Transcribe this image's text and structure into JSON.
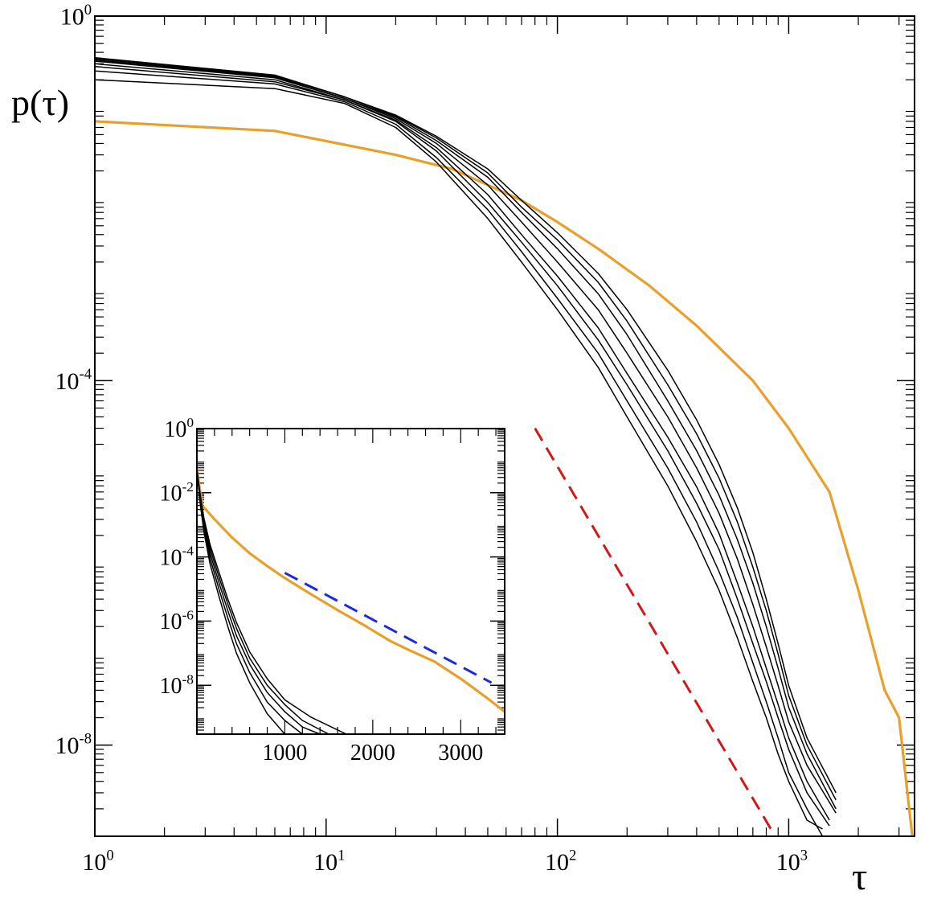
{
  "chart_data": [
    {
      "id": "main",
      "type": "line",
      "title": "",
      "xlabel": "τ",
      "ylabel": "p(τ)",
      "xscale": "log",
      "yscale": "log",
      "xlim": [
        1,
        3500
      ],
      "ylim": [
        1e-09,
        1
      ],
      "legend": "none",
      "colors": {
        "orange": "#E8A02A",
        "black": "#000000",
        "red_dashed": "#D01818"
      },
      "x_ticks": [
        {
          "base": "10",
          "exp": "0",
          "value": 1
        },
        {
          "base": "10",
          "exp": "1",
          "value": 10
        },
        {
          "base": "10",
          "exp": "2",
          "value": 100
        },
        {
          "base": "10",
          "exp": "3",
          "value": 1000
        }
      ],
      "y_ticks": [
        {
          "base": "10",
          "exp": "0",
          "value": 1
        },
        {
          "base": "10",
          "exp": "-4",
          "value": 0.0001
        },
        {
          "base": "10",
          "exp": "-8",
          "value": 1e-08
        }
      ],
      "series": [
        {
          "name": "orange",
          "color": "#E8A02A",
          "style": "solid",
          "x": [
            1,
            6,
            20,
            35,
            50,
            70,
            100,
            150,
            250,
            400,
            700,
            1000,
            1500,
            2000,
            2600,
            3000,
            3500
          ],
          "y": [
            0.07,
            0.055,
            0.03,
            0.021,
            0.014,
            0.0095,
            0.0055,
            0.0028,
            0.0011,
            0.0004,
            0.0001,
            3e-05,
            6e-06,
            5e-07,
            4e-08,
            2e-08,
            6e-10
          ]
        },
        {
          "name": "black-1",
          "color": "#000000",
          "style": "solid",
          "x": [
            1,
            6,
            12,
            20,
            30,
            50,
            70,
            100,
            150,
            200,
            300,
            400,
            500,
            600,
            700,
            800,
            900,
            1000,
            1200,
            1400
          ],
          "y": [
            0.2,
            0.16,
            0.11,
            0.06,
            0.025,
            0.006,
            0.002,
            0.0006,
            0.00014,
            4e-05,
            7e-06,
            1.7e-06,
            5e-07,
            1.5e-07,
            5e-08,
            2e-08,
            8e-09,
            4e-09,
            1.5e-09,
            1.2e-09
          ]
        },
        {
          "name": "black-2",
          "color": "#000000",
          "style": "solid",
          "x": [
            1,
            6,
            12,
            20,
            30,
            50,
            70,
            100,
            150,
            200,
            300,
            400,
            500,
            600,
            700,
            800,
            900,
            1000,
            1200,
            1400
          ],
          "y": [
            0.25,
            0.18,
            0.115,
            0.065,
            0.028,
            0.0075,
            0.0026,
            0.0008,
            0.0002,
            6e-05,
            1.1e-05,
            2.8e-06,
            8e-07,
            2.5e-07,
            8e-08,
            3e-08,
            1.2e-08,
            5e-09,
            2e-09,
            1e-09
          ]
        },
        {
          "name": "black-3",
          "color": "#000000",
          "style": "solid",
          "x": [
            1,
            6,
            12,
            20,
            30,
            50,
            70,
            100,
            150,
            200,
            300,
            400,
            500,
            600,
            700,
            800,
            900,
            1000,
            1200,
            1500
          ],
          "y": [
            0.28,
            0.19,
            0.12,
            0.07,
            0.033,
            0.009,
            0.0033,
            0.0011,
            0.00028,
            9e-05,
            1.7e-05,
            4.5e-06,
            1.4e-06,
            4e-07,
            1.3e-07,
            5e-08,
            2e-08,
            9e-09,
            3e-09,
            1.3e-09
          ]
        },
        {
          "name": "black-4",
          "color": "#000000",
          "style": "solid",
          "x": [
            1,
            6,
            12,
            20,
            30,
            50,
            70,
            100,
            150,
            200,
            300,
            400,
            500,
            600,
            700,
            800,
            900,
            1000,
            1200,
            1500
          ],
          "y": [
            0.3,
            0.2,
            0.12,
            0.072,
            0.036,
            0.011,
            0.004,
            0.0014,
            0.00038,
            0.00012,
            2.4e-05,
            6.8e-06,
            2.1e-06,
            6e-07,
            2e-07,
            7e-08,
            2.8e-08,
            1.2e-08,
            4e-09,
            1.5e-09
          ]
        },
        {
          "name": "black-5",
          "color": "#000000",
          "style": "solid",
          "x": [
            1,
            6,
            12,
            20,
            30,
            50,
            70,
            100,
            150,
            200,
            300,
            400,
            500,
            600,
            700,
            800,
            900,
            1000,
            1200,
            1600
          ],
          "y": [
            0.32,
            0.21,
            0.125,
            0.075,
            0.04,
            0.014,
            0.0055,
            0.002,
            0.0006,
            0.0002,
            4e-05,
            1.1e-05,
            3.5e-06,
            1.1e-06,
            3.5e-07,
            1.2e-07,
            4.5e-08,
            1.8e-08,
            6e-09,
            1.8e-09
          ]
        },
        {
          "name": "black-6",
          "color": "#000000",
          "style": "solid",
          "x": [
            1,
            6,
            12,
            20,
            30,
            50,
            70,
            100,
            150,
            200,
            300,
            400,
            500,
            600,
            700,
            800,
            900,
            1000,
            1200,
            1600
          ],
          "y": [
            0.33,
            0.215,
            0.125,
            0.078,
            0.043,
            0.017,
            0.007,
            0.0028,
            0.0009,
            0.00032,
            6e-05,
            1.7e-05,
            5.5e-06,
            1.8e-06,
            6e-07,
            2e-07,
            7e-08,
            2.6e-08,
            8e-09,
            2e-09
          ]
        },
        {
          "name": "black-7",
          "color": "#000000",
          "style": "solid",
          "x": [
            1,
            6,
            12,
            20,
            30,
            50,
            70,
            100,
            150,
            200,
            300,
            400,
            500,
            600,
            700,
            800,
            900,
            1000,
            1200,
            1600
          ],
          "y": [
            0.34,
            0.22,
            0.13,
            0.08,
            0.046,
            0.019,
            0.008,
            0.0035,
            0.0012,
            0.00045,
            9e-05,
            2.6e-05,
            8.5e-06,
            2.8e-06,
            9e-07,
            3e-07,
            1e-07,
            3.5e-08,
            1e-08,
            2.5e-09
          ]
        },
        {
          "name": "black-8",
          "color": "#000000",
          "style": "solid",
          "x": [
            1,
            6,
            12,
            20,
            30,
            50,
            70,
            100,
            150,
            200,
            300,
            400,
            500,
            600,
            700,
            800,
            900,
            1000,
            1200,
            1600
          ],
          "y": [
            0.35,
            0.225,
            0.13,
            0.082,
            0.048,
            0.021,
            0.0095,
            0.0042,
            0.0015,
            0.0006,
            0.00013,
            3.7e-05,
            1.2e-05,
            4e-06,
            1.3e-06,
            4e-07,
            1.3e-07,
            4.5e-08,
            1.2e-08,
            3e-09
          ]
        }
      ],
      "guide": {
        "name": "red-dashed-power-law",
        "color": "#D01818",
        "style": "dashed",
        "x": [
          80,
          920
        ],
        "y": [
          3e-05,
          8e-10
        ]
      }
    },
    {
      "id": "inset",
      "type": "line",
      "title": "",
      "xlabel": "",
      "ylabel": "",
      "xscale": "linear",
      "yscale": "log",
      "xlim": [
        0,
        3500
      ],
      "ylim": [
        3e-10,
        1
      ],
      "legend": "none",
      "x_ticks": [
        {
          "label": "1000",
          "value": 1000
        },
        {
          "label": "2000",
          "value": 2000
        },
        {
          "label": "3000",
          "value": 3000
        }
      ],
      "y_ticks": [
        {
          "base": "10",
          "exp": "0",
          "value": 1
        },
        {
          "base": "10",
          "exp": "-2",
          "value": 0.01
        },
        {
          "base": "10",
          "exp": "-4",
          "value": 0.0001
        },
        {
          "base": "10",
          "exp": "-6",
          "value": 1e-06
        },
        {
          "base": "10",
          "exp": "-8",
          "value": 1e-08
        }
      ],
      "series": [
        {
          "name": "orange",
          "color": "#E8A02A",
          "style": "solid",
          "x": [
            1,
            60,
            200,
            400,
            600,
            800,
            1000,
            1300,
            1600,
            1900,
            2200,
            2400,
            2700,
            3000,
            3300,
            3500
          ],
          "y": [
            0.05,
            0.004,
            0.0015,
            0.0004,
            0.00013,
            5.2e-05,
            2.2e-05,
            6.8e-06,
            2.2e-06,
            7.5e-07,
            2.4e-07,
            1.3e-07,
            5.5e-08,
            1.6e-08,
            4e-09,
            1.5e-09
          ]
        },
        {
          "name": "black-1",
          "color": "#000000",
          "style": "solid",
          "x": [
            1,
            40,
            80,
            150,
            250,
            350,
            450,
            600,
            800,
            1000
          ],
          "y": [
            0.05,
            0.004,
            0.0006,
            6e-05,
            6e-06,
            7e-07,
            1e-07,
            1.2e-08,
            1.3e-09,
            3e-10
          ]
        },
        {
          "name": "black-2",
          "color": "#000000",
          "style": "solid",
          "x": [
            1,
            40,
            80,
            150,
            250,
            350,
            450,
            600,
            800,
            1000,
            1200
          ],
          "y": [
            0.05,
            0.005,
            0.0008,
            9e-05,
            1e-05,
            1.3e-06,
            2e-07,
            2.5e-08,
            3e-09,
            8e-10,
            3e-10
          ]
        },
        {
          "name": "black-3",
          "color": "#000000",
          "style": "solid",
          "x": [
            1,
            40,
            80,
            150,
            250,
            350,
            450,
            600,
            800,
            1000,
            1200,
            1400
          ],
          "y": [
            0.05,
            0.006,
            0.001,
            0.00013,
            1.6e-05,
            2.2e-06,
            3.5e-07,
            4.5e-08,
            6e-09,
            1.5e-09,
            5e-10,
            3e-10
          ]
        },
        {
          "name": "black-4",
          "color": "#000000",
          "style": "solid",
          "x": [
            1,
            40,
            80,
            150,
            250,
            350,
            450,
            600,
            800,
            1000,
            1200,
            1500
          ],
          "y": [
            0.05,
            0.007,
            0.0013,
            0.00018,
            2.4e-05,
            3.5e-06,
            6e-07,
            7e-08,
            1e-08,
            2.5e-09,
            8e-10,
            3e-10
          ]
        },
        {
          "name": "black-5",
          "color": "#000000",
          "style": "solid",
          "x": [
            1,
            40,
            80,
            150,
            250,
            350,
            450,
            600,
            800,
            1000,
            1300,
            1700
          ],
          "y": [
            0.05,
            0.008,
            0.0016,
            0.00024,
            3.4e-05,
            5e-06,
            9e-07,
            1.1e-07,
            1.6e-08,
            3.5e-09,
            1e-09,
            3e-10
          ]
        }
      ],
      "guide": {
        "name": "blue-dashed-exponential",
        "color": "#1A2BE0",
        "style": "dashed",
        "x": [
          1000,
          3350
        ],
        "y": [
          3.2e-05,
          1.2e-08
        ]
      }
    }
  ]
}
